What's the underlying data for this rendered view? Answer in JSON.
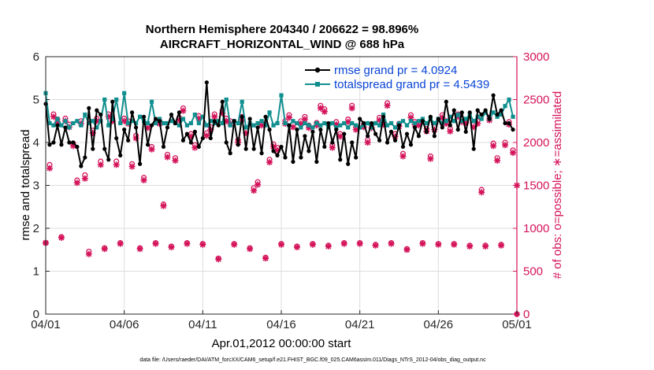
{
  "chart_data": {
    "type": "line",
    "title_line1": "Northern Hemisphere 204340 / 206622 = 98.896%",
    "title_line2": "AIRCRAFT_HORIZONTAL_WIND @ 688 hPa",
    "xlabel": "Apr.01,2012 00:00:00 start",
    "ylabel_left": "rmse and totalspread",
    "ylabel_right": "# of obs: o=possible; ∗=assimilated",
    "footnote": "data file: /Users/raeder/DAI/ATM_forcXX/CAM6_setup/f.e21.FHIST_BGC.f09_025.CAM6assim.011/Diags_NTrS_2012-04/obs_diag_output.nc",
    "x_ticks": [
      "04/01",
      "04/06",
      "04/11",
      "04/16",
      "04/21",
      "04/26",
      "05/01"
    ],
    "x_range_days": [
      0,
      30
    ],
    "ylim_left": [
      0,
      6
    ],
    "yticks_left": [
      "0",
      "1",
      "2",
      "3",
      "4",
      "5",
      "6"
    ],
    "ylim_right": [
      0,
      3000
    ],
    "yticks_right": [
      "0",
      "500",
      "1000",
      "1500",
      "2000",
      "2500",
      "3000"
    ],
    "colors": {
      "rmse": "#000000",
      "spread": "#118f8f",
      "obs": "#d4145a",
      "legend_text": "#0a44d6",
      "right_axis": "#d4145a"
    },
    "series": [
      {
        "name": "rmse grand pr = 4.0924",
        "axis": "left",
        "x": [
          0,
          0.25,
          0.5,
          0.75,
          1,
          1.25,
          1.5,
          1.75,
          2,
          2.25,
          2.5,
          2.75,
          3,
          3.25,
          3.5,
          3.75,
          4,
          4.25,
          4.5,
          4.75,
          5,
          5.25,
          5.5,
          5.75,
          6,
          6.25,
          6.5,
          6.75,
          7,
          7.25,
          7.5,
          7.75,
          8,
          8.25,
          8.5,
          8.75,
          9,
          9.25,
          9.5,
          9.75,
          10,
          10.25,
          10.5,
          10.75,
          11,
          11.25,
          11.5,
          11.75,
          12,
          12.25,
          12.5,
          12.75,
          13,
          13.25,
          13.5,
          13.75,
          14,
          14.25,
          14.5,
          14.75,
          15,
          15.25,
          15.5,
          15.75,
          16,
          16.25,
          16.5,
          16.75,
          17,
          17.25,
          17.5,
          17.75,
          18,
          18.25,
          18.5,
          18.75,
          19,
          19.25,
          19.5,
          19.75,
          20,
          20.25,
          20.5,
          20.75,
          21,
          21.25,
          21.5,
          21.75,
          22,
          22.25,
          22.5,
          22.75,
          23,
          23.25,
          23.5,
          23.75,
          24,
          24.25,
          24.5,
          24.75,
          25,
          25.25,
          25.5,
          25.75,
          26,
          26.25,
          26.5,
          26.75,
          27,
          27.25,
          27.5,
          27.75,
          28,
          28.25,
          28.5,
          28.75,
          29,
          29.25,
          29.5,
          29.75
        ],
        "values": [
          4.9,
          3.95,
          4.0,
          4.4,
          3.95,
          4.35,
          4.0,
          4.0,
          3.9,
          3.45,
          3.65,
          4.8,
          3.85,
          4.75,
          4.65,
          3.85,
          3.6,
          4.95,
          4.1,
          3.7,
          4.3,
          4.05,
          4.7,
          4.35,
          3.5,
          4.6,
          3.95,
          4.4,
          4.55,
          4.5,
          3.9,
          4.35,
          4.65,
          4.45,
          4.7,
          4.05,
          4.2,
          4.0,
          4.25,
          3.9,
          4.1,
          5.4,
          4.1,
          4.5,
          4.4,
          4.95,
          4.0,
          3.75,
          4.5,
          3.95,
          4.6,
          3.85,
          4.55,
          3.85,
          4.35,
          3.75,
          4.6,
          4.3,
          3.8,
          3.7,
          3.9,
          3.65,
          4.4,
          3.55,
          4.3,
          3.65,
          4.15,
          3.8,
          4.25,
          3.55,
          4.3,
          3.9,
          4.45,
          4.0,
          4.3,
          3.6,
          4.2,
          3.5,
          4.0,
          3.65,
          4.55,
          4.45,
          4.15,
          4.45,
          4.2,
          4.05,
          4.6,
          4.0,
          4.25,
          4.05,
          4.4,
          3.9,
          4.2,
          3.95,
          4.35,
          4.15,
          4.5,
          4.25,
          4.6,
          4.15,
          4.55,
          4.35,
          4.95,
          4.4,
          4.75,
          4.3,
          4.7,
          4.25,
          4.7,
          3.85,
          4.75,
          4.65,
          4.75,
          4.55,
          5.1,
          4.65,
          4.75,
          4.45,
          4.45,
          4.3
        ]
      },
      {
        "name": "totalspread grand pr = 4.5439",
        "axis": "left",
        "x": [
          0,
          0.25,
          0.5,
          0.75,
          1,
          1.25,
          1.5,
          1.75,
          2,
          2.25,
          2.5,
          2.75,
          3,
          3.25,
          3.5,
          3.75,
          4,
          4.25,
          4.5,
          4.75,
          5,
          5.25,
          5.5,
          5.75,
          6,
          6.25,
          6.5,
          6.75,
          7,
          7.25,
          7.5,
          7.75,
          8,
          8.25,
          8.5,
          8.75,
          9,
          9.25,
          9.5,
          9.75,
          10,
          10.25,
          10.5,
          10.75,
          11,
          11.25,
          11.5,
          11.75,
          12,
          12.25,
          12.5,
          12.75,
          13,
          13.25,
          13.5,
          13.75,
          14,
          14.25,
          14.5,
          14.75,
          15,
          15.25,
          15.5,
          15.75,
          16,
          16.25,
          16.5,
          16.75,
          17,
          17.25,
          17.5,
          17.75,
          18,
          18.25,
          18.5,
          18.75,
          19,
          19.25,
          19.5,
          19.75,
          20,
          20.25,
          20.5,
          20.75,
          21,
          21.25,
          21.5,
          21.75,
          22,
          22.25,
          22.5,
          22.75,
          23,
          23.25,
          23.5,
          23.75,
          24,
          24.25,
          24.5,
          24.75,
          25,
          25.25,
          25.5,
          25.75,
          26,
          26.25,
          26.5,
          26.75,
          27,
          27.25,
          27.5,
          27.75,
          28,
          28.25,
          28.5,
          28.75,
          29,
          29.25,
          29.5,
          29.75
        ],
        "values": [
          5.15,
          4.45,
          4.4,
          4.55,
          4.4,
          4.5,
          4.35,
          4.45,
          4.5,
          4.4,
          4.65,
          4.45,
          4.5,
          4.35,
          4.5,
          5.0,
          4.4,
          4.55,
          5.0,
          4.45,
          5.15,
          4.45,
          4.5,
          4.45,
          4.6,
          4.5,
          4.45,
          4.95,
          4.45,
          4.55,
          4.45,
          4.45,
          4.5,
          4.45,
          4.4,
          4.55,
          4.4,
          4.45,
          4.65,
          4.45,
          4.6,
          4.4,
          4.5,
          4.45,
          4.5,
          4.45,
          5.0,
          4.4,
          4.5,
          4.45,
          4.95,
          4.35,
          4.45,
          4.4,
          4.45,
          4.5,
          4.4,
          4.7,
          4.4,
          4.45,
          5.1,
          4.45,
          4.4,
          4.5,
          4.45,
          4.35,
          4.45,
          4.4,
          4.35,
          4.45,
          4.4,
          4.45,
          4.35,
          4.45,
          4.35,
          4.4,
          4.45,
          4.35,
          4.45,
          4.4,
          4.35,
          4.4,
          4.45,
          4.35,
          4.45,
          4.4,
          4.65,
          4.4,
          4.45,
          4.35,
          4.45,
          4.5,
          4.4,
          4.5,
          4.45,
          4.5,
          4.55,
          4.45,
          4.55,
          4.45,
          4.55,
          4.45,
          4.5,
          4.6,
          4.5,
          4.65,
          4.5,
          4.55,
          4.65,
          4.5,
          4.6,
          4.55,
          4.7,
          4.55,
          4.7,
          4.6,
          4.65,
          4.85,
          5.0,
          4.6
        ]
      }
    ],
    "obs_series": [
      {
        "name": "possible",
        "marker": "o",
        "axis": "right",
        "x": [
          0,
          0.25,
          0.5,
          0.75,
          1,
          1.25,
          1.5,
          1.75,
          2,
          2.25,
          2.5,
          2.75,
          3,
          3.25,
          3.5,
          3.75,
          4,
          4.25,
          4.5,
          4.75,
          5,
          5.25,
          5.5,
          5.75,
          6,
          6.25,
          6.5,
          6.75,
          7,
          7.25,
          7.5,
          7.75,
          8,
          8.25,
          8.5,
          8.75,
          9,
          9.25,
          9.5,
          9.75,
          10,
          10.25,
          10.5,
          10.75,
          11,
          11.25,
          11.5,
          11.75,
          12,
          12.25,
          12.5,
          12.75,
          13,
          13.25,
          13.5,
          13.75,
          14,
          14.25,
          14.5,
          14.75,
          15,
          15.25,
          15.5,
          15.75,
          16,
          16.25,
          16.5,
          16.75,
          17,
          17.25,
          17.5,
          17.75,
          18,
          18.25,
          18.5,
          18.75,
          19,
          19.25,
          19.5,
          19.75,
          20,
          20.25,
          20.5,
          20.75,
          21,
          21.25,
          21.5,
          21.75,
          22,
          22.25,
          22.5,
          22.75,
          23,
          23.25,
          23.5,
          23.75,
          24,
          24.25,
          24.5,
          24.75,
          25,
          25.25,
          25.5,
          25.75,
          26,
          26.25,
          26.5,
          26.75,
          27,
          27.25,
          27.5,
          27.75,
          28,
          28.25,
          28.5,
          28.75,
          29,
          29.25,
          29.5,
          29.75
        ],
        "values": [
          830,
          1740,
          2330,
          2270,
          900,
          2280,
          2210,
          1990,
          1560,
          2250,
          1620,
          730,
          2140,
          2280,
          1780,
          770,
          2330,
          2280,
          1780,
          830,
          2280,
          2250,
          1750,
          2080,
          770,
          1590,
          2200,
          1950,
          830,
          2250,
          1280,
          1860,
          790,
          1820,
          2290,
          2400,
          830,
          2100,
          1970,
          2310,
          820,
          2110,
          2180,
          2330,
          650,
          2370,
          2280,
          2250,
          820,
          2030,
          2300,
          2140,
          770,
          1470,
          1540,
          2230,
          660,
          1800,
          1980,
          1940,
          820,
          2250,
          2320,
          2210,
          790,
          2250,
          2300,
          2200,
          820,
          2230,
          2430,
          2390,
          800,
          1970,
          2240,
          2100,
          830,
          2270,
          2430,
          2180,
          830,
          2210,
          2030,
          2200,
          810,
          2290,
          2240,
          2460,
          830,
          2100,
          2220,
          1870,
          760,
          2320,
          2240,
          2230,
          830,
          2160,
          1840,
          2180,
          820,
          2320,
          2250,
          2160,
          820,
          2330,
          2270,
          2260,
          800,
          2210,
          2250,
          1450,
          800,
          2290,
          1990,
          1820,
          810,
          2000,
          2240,
          1910
        ]
      },
      {
        "name": "assimilated",
        "marker": "*",
        "axis": "right",
        "x": [
          0,
          0.25,
          0.5,
          0.75,
          1,
          1.25,
          1.5,
          1.75,
          2,
          2.25,
          2.5,
          2.75,
          3,
          3.25,
          3.5,
          3.75,
          4,
          4.25,
          4.5,
          4.75,
          5,
          5.25,
          5.5,
          5.75,
          6,
          6.25,
          6.5,
          6.75,
          7,
          7.25,
          7.5,
          7.75,
          8,
          8.25,
          8.5,
          8.75,
          9,
          9.25,
          9.5,
          9.75,
          10,
          10.25,
          10.5,
          10.75,
          11,
          11.25,
          11.5,
          11.75,
          12,
          12.25,
          12.5,
          12.75,
          13,
          13.25,
          13.5,
          13.75,
          14,
          14.25,
          14.5,
          14.75,
          15,
          15.25,
          15.5,
          15.75,
          16,
          16.25,
          16.5,
          16.75,
          17,
          17.25,
          17.5,
          17.75,
          18,
          18.25,
          18.5,
          18.75,
          19,
          19.25,
          19.5,
          19.75,
          20,
          20.25,
          20.5,
          20.75,
          21,
          21.25,
          21.5,
          21.75,
          22,
          22.25,
          22.5,
          22.75,
          23,
          23.25,
          23.5,
          23.75,
          24,
          24.25,
          24.5,
          24.75,
          25,
          25.25,
          25.5,
          25.75,
          26,
          26.25,
          26.5,
          26.75,
          27,
          27.25,
          27.5,
          27.75,
          28,
          28.25,
          28.5,
          28.75,
          29,
          29.25,
          29.5,
          29.75
        ],
        "values": [
          830,
          1700,
          2300,
          2240,
          890,
          2250,
          2180,
          1960,
          1530,
          2220,
          1580,
          700,
          2110,
          2250,
          1740,
          760,
          2300,
          2250,
          1740,
          820,
          2250,
          2220,
          1720,
          2050,
          760,
          1560,
          2170,
          1920,
          820,
          2220,
          1260,
          1830,
          780,
          1790,
          2260,
          2370,
          820,
          2070,
          1940,
          2280,
          810,
          2080,
          2150,
          2300,
          640,
          2340,
          2250,
          2220,
          810,
          2000,
          2270,
          2110,
          760,
          1440,
          1510,
          2200,
          650,
          1770,
          1950,
          1910,
          810,
          2220,
          2290,
          2180,
          780,
          2220,
          2270,
          2170,
          810,
          2200,
          2400,
          2360,
          790,
          1940,
          2210,
          2070,
          820,
          2240,
          2400,
          2150,
          820,
          2180,
          2000,
          2170,
          800,
          2260,
          2210,
          2430,
          820,
          2070,
          2190,
          1840,
          750,
          2290,
          2210,
          2200,
          820,
          2130,
          1810,
          2150,
          810,
          2290,
          2220,
          2130,
          810,
          2300,
          2240,
          2230,
          790,
          2180,
          2220,
          1420,
          790,
          2260,
          1960,
          1790,
          800,
          1970,
          2210,
          1880
        ]
      }
    ],
    "obs_endpoints": [
      {
        "x": 30,
        "value": 1500,
        "marker": "*"
      },
      {
        "x": 30,
        "value": 0,
        "marker": "o"
      }
    ]
  }
}
